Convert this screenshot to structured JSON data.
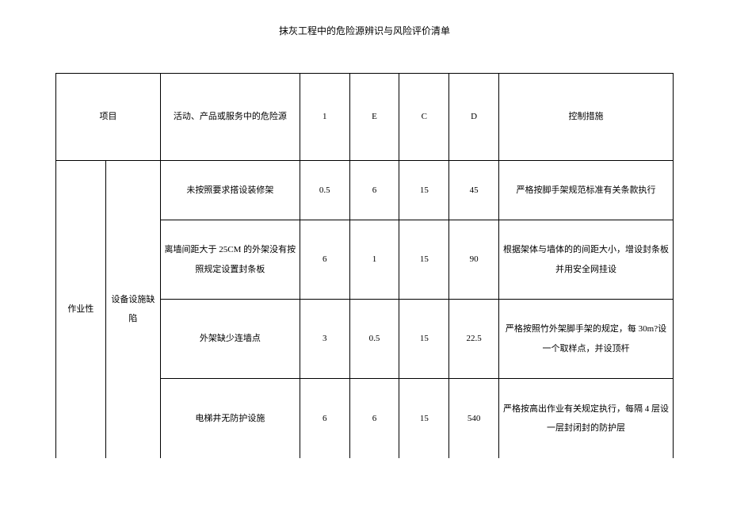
{
  "title": "抹灰工程中的危险源辨识与风险评价清单",
  "headers": {
    "project": "项目",
    "hazard": "活动、产品或服务中的危险源",
    "col1": "1",
    "colE": "E",
    "colC": "C",
    "colD": "D",
    "control": "控制措施"
  },
  "category1": "作业性",
  "category2": "设备设施缺陷",
  "rows": [
    {
      "hazard": "未按照要求搭设装修架",
      "v1": "0.5",
      "vE": "6",
      "vC": "15",
      "vD": "45",
      "control": "严格按脚手架规范标准有关条款执行"
    },
    {
      "hazard": "离墙间距大于 25CM 的外架没有按照规定设置封条板",
      "v1": "6",
      "vE": "1",
      "vC": "15",
      "vD": "90",
      "control": "根据架体与墙体的的间距大小，增设封条板并用安全网挂设"
    },
    {
      "hazard": "外架缺少连墙点",
      "v1": "3",
      "vE": "0.5",
      "vC": "15",
      "vD": "22.5",
      "control": "严格按照竹外架脚手架的规定，每 30m?设一个取样点，并设顶杆"
    },
    {
      "hazard": "电梯井无防护设施",
      "v1": "6",
      "vE": "6",
      "vC": "15",
      "vD": "540",
      "control": "严格按高出作业有关规定执行，每隔 4 层设一层封闭封的防护层"
    }
  ]
}
